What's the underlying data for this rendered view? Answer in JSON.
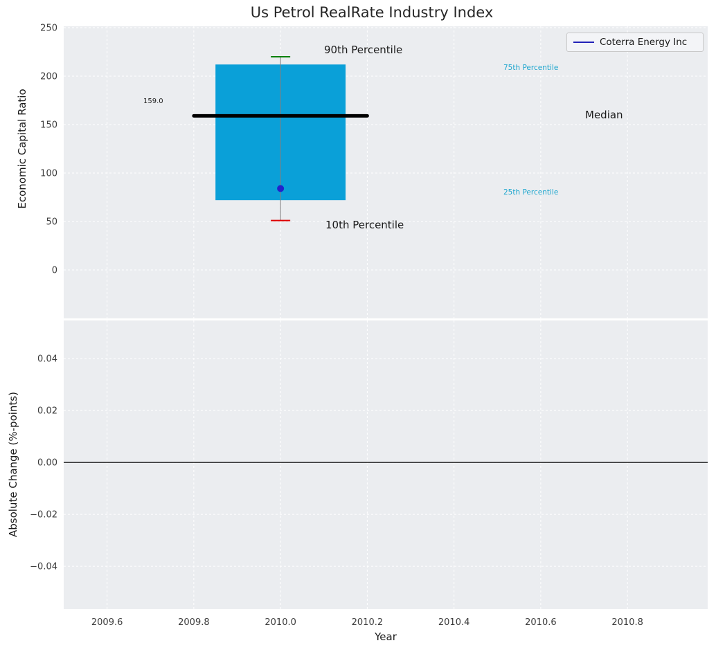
{
  "figure": {
    "title": "Us Petrol RealRate Industry Index",
    "background": "#ffffff",
    "axes_background": "#ebedf0"
  },
  "chart_data": [
    {
      "type": "boxplot",
      "subplot": "top",
      "title": "Us Petrol RealRate Industry Index",
      "xlabel": "",
      "ylabel": "Economic Capital Ratio",
      "xlim": [
        2009.5,
        2010.985
      ],
      "ylim": [
        -50,
        251.4
      ],
      "grid": true,
      "grid_style": "white dashed",
      "xticks": [
        {
          "v": 2009.6,
          "label": "2009.6"
        },
        {
          "v": 2009.8,
          "label": "2009.8"
        },
        {
          "v": 2010.0,
          "label": "2010.0"
        },
        {
          "v": 2010.2,
          "label": "2010.2"
        },
        {
          "v": 2010.4,
          "label": "2010.4"
        },
        {
          "v": 2010.6,
          "label": "2010.6"
        },
        {
          "v": 2010.8,
          "label": "2010.8"
        }
      ],
      "yticks": [
        {
          "v": 0,
          "label": "0"
        },
        {
          "v": 50,
          "label": "50"
        },
        {
          "v": 100,
          "label": "100"
        },
        {
          "v": 150,
          "label": "150"
        },
        {
          "v": 200,
          "label": "200"
        },
        {
          "v": 250,
          "label": "250"
        }
      ],
      "box": {
        "x": 2010.0,
        "box_width": 0.3,
        "median_line_halfwidth": 0.2,
        "p10": 51,
        "p25": 72,
        "median": 159.0,
        "p75": 212,
        "p90": 220
      },
      "series": [
        {
          "name": "Coterra Energy Inc",
          "type": "point",
          "x": [
            2010.0
          ],
          "y": [
            84
          ]
        }
      ],
      "annotations": [
        {
          "text": "90th Percentile"
        },
        {
          "text": "10th Percentile"
        },
        {
          "text": "75th Percentile"
        },
        {
          "text": "25th Percentile"
        },
        {
          "text": "Median"
        },
        {
          "text": "159.0"
        }
      ],
      "legend": {
        "position": "upper right",
        "entries": [
          {
            "label": "Coterra Energy Inc",
            "color": "#2121b8"
          }
        ]
      },
      "colors": {
        "box_fill": "#0aa0d8",
        "median_line": "#000000",
        "p90_cap": "#008000",
        "p10_cap": "#dd0000",
        "whisker": "#808080",
        "company_point": "#2222cc",
        "percentile_text": "#1ea6ce"
      }
    },
    {
      "type": "line",
      "subplot": "bottom",
      "xlabel": "Year",
      "ylabel": "Absolute Change (%-points)",
      "xlim": [
        2009.5,
        2010.985
      ],
      "ylim": [
        -0.0565,
        0.0547
      ],
      "grid": true,
      "xticks": [
        {
          "v": 2009.6,
          "label": "2009.6"
        },
        {
          "v": 2009.8,
          "label": "2009.8"
        },
        {
          "v": 2010.0,
          "label": "2010.0"
        },
        {
          "v": 2010.2,
          "label": "2010.2"
        },
        {
          "v": 2010.4,
          "label": "2010.4"
        },
        {
          "v": 2010.6,
          "label": "2010.6"
        },
        {
          "v": 2010.8,
          "label": "2010.8"
        }
      ],
      "yticks": [
        {
          "v": 0.04,
          "label": "0.04"
        },
        {
          "v": 0.02,
          "label": "0.02"
        },
        {
          "v": 0.0,
          "label": "0.00"
        },
        {
          "v": -0.02,
          "label": "−0.02"
        },
        {
          "v": -0.04,
          "label": "−0.04"
        }
      ],
      "zero_line": 0.0,
      "series": []
    }
  ]
}
